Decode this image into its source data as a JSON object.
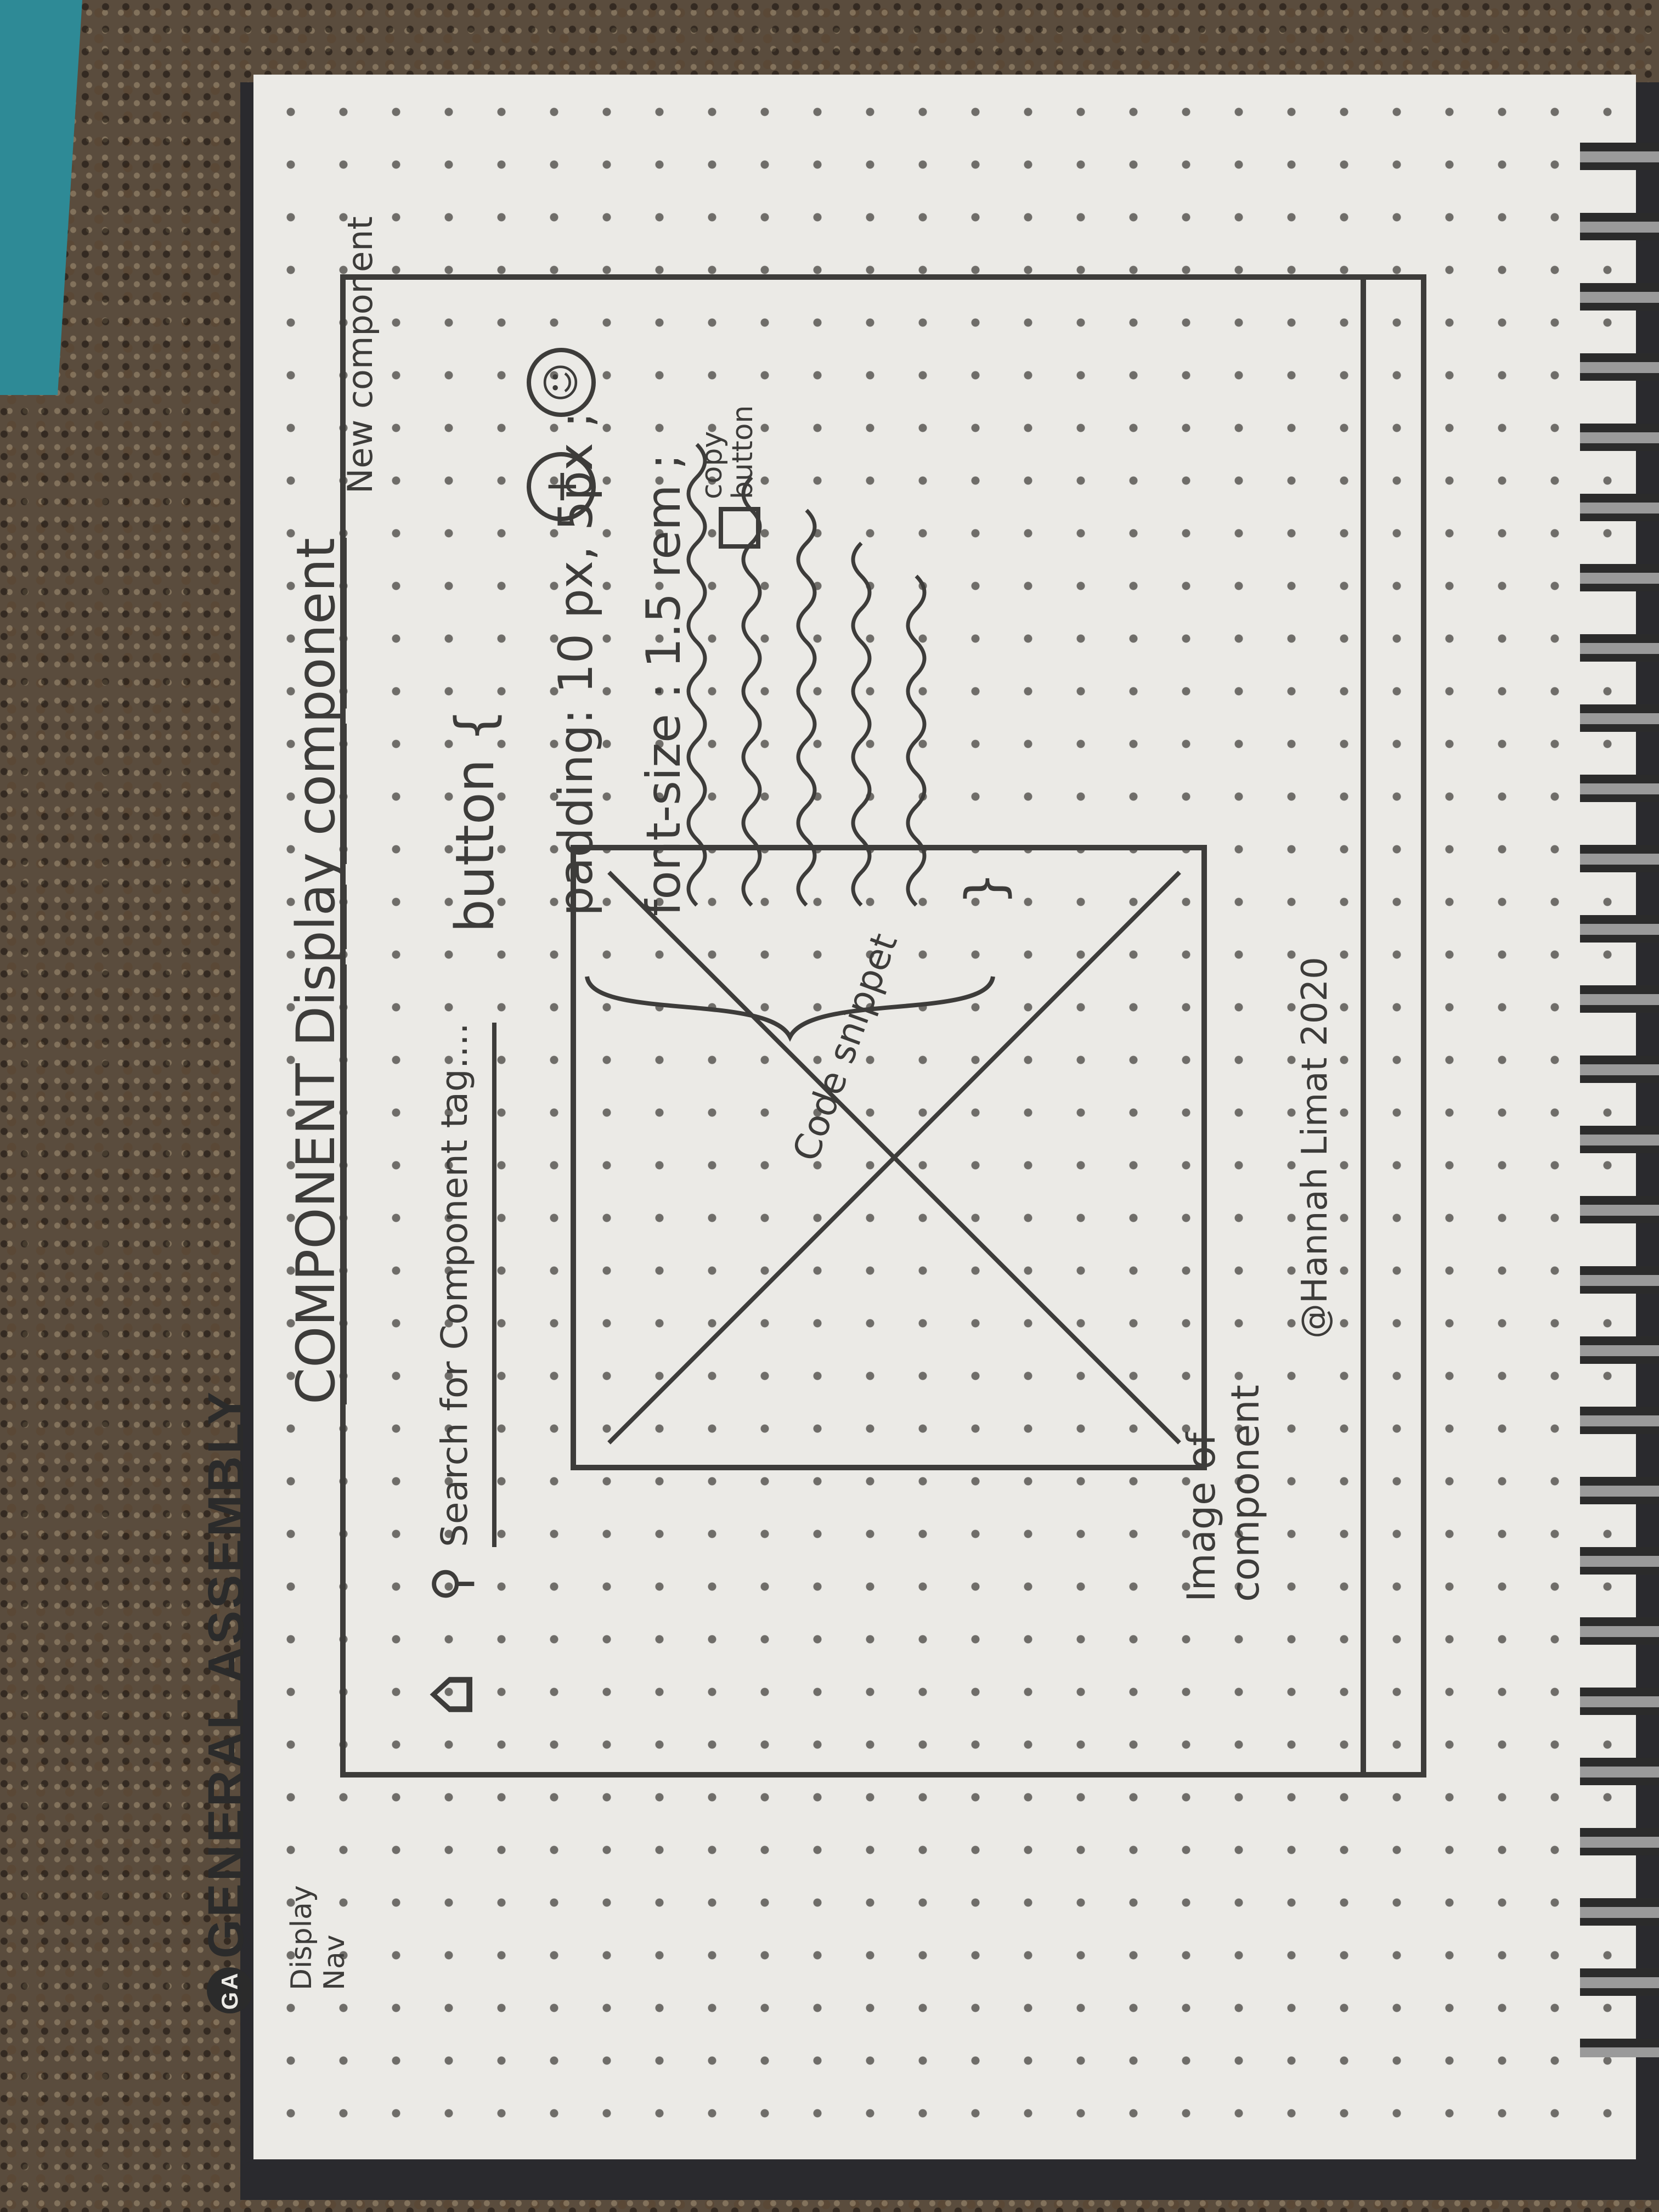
{
  "sketch": {
    "brand": "GENERAL ASSEMBLY",
    "brand_logo": "GA",
    "title": "COMPONENT Display component",
    "nav_note": "Display Nav",
    "new_component_note": "New component",
    "icons": {
      "home": "home-icon",
      "search": "search-icon",
      "add": "plus-icon",
      "user": "user-icon",
      "copy": "copy-icon"
    },
    "search_placeholder": "Search for Component tag....",
    "image_placeholder_label": "Image of component",
    "code_snippet": {
      "selector": "button {",
      "line1": "padding: 10 px, 5px ;",
      "line2": "font-size : 1.5 rem ;",
      "closing": "}",
      "label": "Code snippet"
    },
    "copy_button_label": "copy button",
    "footer_credit": "@Hannah Limat 2020"
  }
}
